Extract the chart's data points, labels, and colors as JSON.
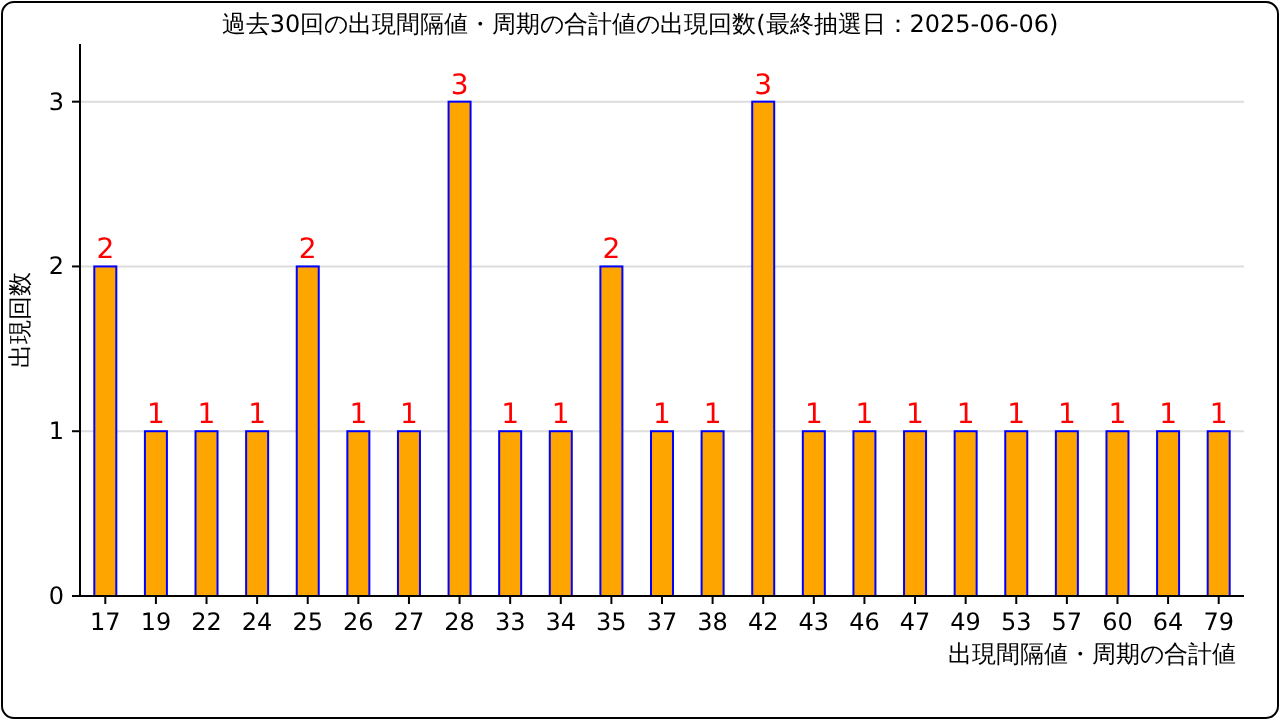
{
  "chart_data": {
    "type": "bar",
    "title": "過去30回の出現間隔値・周期の合計値の出現回数(最終抽選日：2025-06-06)",
    "xlabel": "出現間隔値・周期の合計値",
    "ylabel": "出現回数",
    "categories": [
      "17",
      "19",
      "22",
      "24",
      "25",
      "26",
      "27",
      "28",
      "33",
      "34",
      "35",
      "37",
      "38",
      "42",
      "43",
      "46",
      "47",
      "49",
      "53",
      "57",
      "60",
      "64",
      "79"
    ],
    "series": [
      {
        "color": "#ffa500",
        "values": [
          2,
          1,
          1,
          1,
          2,
          1,
          1,
          3,
          1,
          1,
          2,
          1,
          1,
          3,
          1,
          1,
          1,
          1,
          1,
          1,
          1,
          1,
          1
        ]
      }
    ],
    "ylim": [
      0,
      3.35
    ],
    "yticks": [
      0,
      1,
      2,
      3
    ],
    "grid": "y",
    "data_labels": true
  }
}
